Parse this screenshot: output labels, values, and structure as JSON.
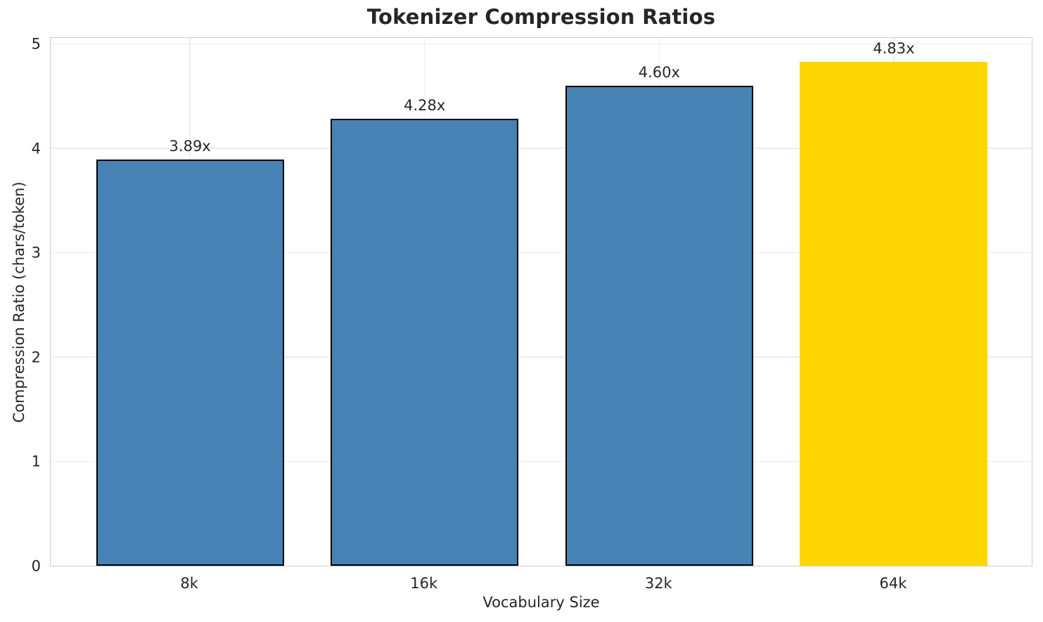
{
  "chart_data": {
    "type": "bar",
    "title": "Tokenizer Compression Ratios",
    "xlabel": "Vocabulary Size",
    "ylabel": "Compression Ratio (chars/token)",
    "categories": [
      "8k",
      "16k",
      "32k",
      "64k"
    ],
    "values": [
      3.89,
      4.28,
      4.6,
      4.83
    ],
    "bar_labels": [
      "3.89x",
      "4.28x",
      "4.60x",
      "4.83x"
    ],
    "ylim": [
      0,
      5.07
    ],
    "yticks": [
      0,
      1,
      2,
      3,
      4,
      5
    ],
    "grid": true,
    "legend_position": "none",
    "highlight_index": 3,
    "colors": {
      "bar": "#4682B4",
      "bar_highlight": "#FFD700",
      "bar_edge": "#000000",
      "grid": "#ececec",
      "spine": "#cccccc",
      "text": "#262626"
    }
  }
}
